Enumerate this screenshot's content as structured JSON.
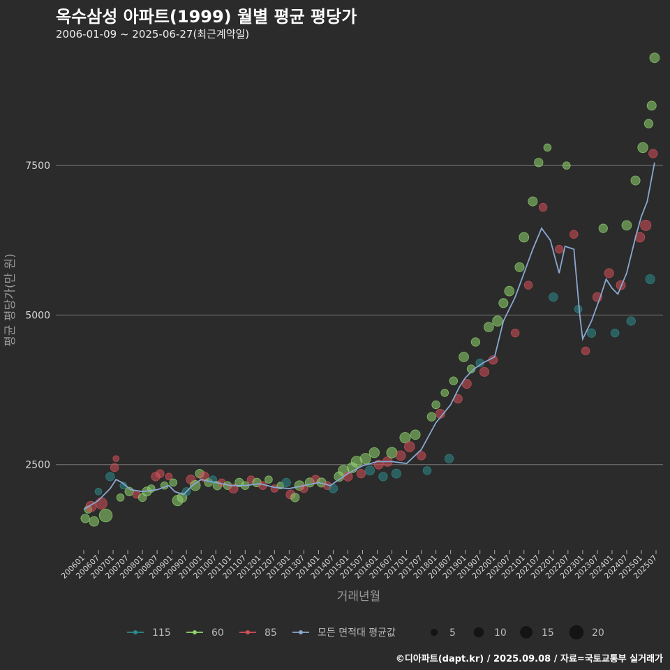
{
  "chart_data": {
    "type": "scatter",
    "title": "옥수삼성 아파트(1999) 월별 평균 평당가",
    "subtitle": "2006-01-09 ~ 2025-06-27(최근계약일)",
    "xlabel": "거래년월",
    "ylabel": "평균 평당가(만 원)",
    "ylim": [
      1050,
      9450
    ],
    "yticks": [
      2500,
      5000,
      7500
    ],
    "grid": true,
    "x_tick_labels": [
      "200601",
      "200607",
      "200701",
      "200707",
      "200801",
      "200807",
      "200901",
      "200907",
      "201001",
      "201007",
      "201101",
      "201107",
      "201201",
      "201207",
      "201301",
      "201307",
      "201401",
      "201407",
      "201501",
      "201507",
      "201601",
      "201607",
      "201701",
      "201707",
      "201801",
      "201807",
      "201901",
      "201907",
      "202001",
      "202007",
      "202101",
      "202107",
      "202201",
      "202207",
      "202301",
      "202307",
      "202401",
      "202407",
      "202501",
      "202507"
    ],
    "series": [
      {
        "name": "115",
        "color": "#2e8b8b"
      },
      {
        "name": "60",
        "color": "#8fd46e"
      },
      {
        "name": "85",
        "color": "#d4505a"
      }
    ],
    "avg_series": {
      "name": "모든 면적대 평균값",
      "color": "#8aa8d0",
      "points": [
        [
          2006.0,
          1750
        ],
        [
          2006.5,
          1900
        ],
        [
          2006.9,
          2100
        ],
        [
          2007.1,
          2250
        ],
        [
          2007.3,
          2200
        ],
        [
          2007.6,
          2080
        ],
        [
          2008.0,
          2050
        ],
        [
          2008.5,
          2080
        ],
        [
          2008.9,
          2150
        ],
        [
          2009.1,
          2050
        ],
        [
          2009.4,
          2000
        ],
        [
          2009.7,
          2150
        ],
        [
          2010.0,
          2250
        ],
        [
          2010.5,
          2200
        ],
        [
          2011.0,
          2150
        ],
        [
          2011.5,
          2150
        ],
        [
          2012.0,
          2180
        ],
        [
          2012.5,
          2120
        ],
        [
          2013.0,
          2100
        ],
        [
          2013.5,
          2150
        ],
        [
          2014.0,
          2200
        ],
        [
          2014.4,
          2150
        ],
        [
          2014.7,
          2250
        ],
        [
          2015.0,
          2350
        ],
        [
          2015.5,
          2480
        ],
        [
          2016.0,
          2550
        ],
        [
          2016.5,
          2550
        ],
        [
          2017.0,
          2520
        ],
        [
          2017.5,
          2750
        ],
        [
          2018.0,
          3200
        ],
        [
          2018.5,
          3500
        ],
        [
          2018.8,
          3800
        ],
        [
          2019.0,
          3950
        ],
        [
          2019.3,
          4100
        ],
        [
          2019.6,
          4200
        ],
        [
          2020.0,
          4300
        ],
        [
          2020.3,
          4900
        ],
        [
          2020.7,
          5300
        ],
        [
          2021.0,
          5700
        ],
        [
          2021.3,
          6100
        ],
        [
          2021.6,
          6450
        ],
        [
          2021.9,
          6250
        ],
        [
          2022.2,
          5700
        ],
        [
          2022.4,
          6150
        ],
        [
          2022.7,
          6100
        ],
        [
          2022.9,
          5000
        ],
        [
          2023.0,
          4600
        ],
        [
          2023.3,
          4900
        ],
        [
          2023.6,
          5300
        ],
        [
          2023.8,
          5600
        ],
        [
          2024.0,
          5450
        ],
        [
          2024.2,
          5350
        ],
        [
          2024.5,
          5700
        ],
        [
          2024.8,
          6300
        ],
        [
          2025.0,
          6650
        ],
        [
          2025.2,
          6900
        ],
        [
          2025.45,
          7550
        ]
      ]
    },
    "points": [
      [
        2006.05,
        1600,
        8,
        "60"
      ],
      [
        2006.15,
        1750,
        6,
        "60"
      ],
      [
        2006.25,
        1800,
        12,
        "85"
      ],
      [
        2006.35,
        1550,
        10,
        "60"
      ],
      [
        2006.5,
        2050,
        5,
        "115"
      ],
      [
        2006.6,
        1850,
        14,
        "85"
      ],
      [
        2006.75,
        1650,
        18,
        "60"
      ],
      [
        2006.9,
        2300,
        8,
        "115"
      ],
      [
        2007.05,
        2450,
        7,
        "85"
      ],
      [
        2007.1,
        2600,
        4,
        "85"
      ],
      [
        2007.25,
        1950,
        6,
        "60"
      ],
      [
        2007.35,
        2150,
        5,
        "115"
      ],
      [
        2007.55,
        2050,
        8,
        "60"
      ],
      [
        2007.8,
        2000,
        6,
        "85"
      ],
      [
        2008.0,
        1950,
        7,
        "60"
      ],
      [
        2008.15,
        2050,
        9,
        "60"
      ],
      [
        2008.3,
        2100,
        6,
        "60"
      ],
      [
        2008.45,
        2300,
        8,
        "85"
      ],
      [
        2008.6,
        2350,
        7,
        "85"
      ],
      [
        2008.75,
        2150,
        6,
        "60"
      ],
      [
        2008.9,
        2300,
        5,
        "85"
      ],
      [
        2009.05,
        2200,
        6,
        "60"
      ],
      [
        2009.2,
        1900,
        12,
        "60"
      ],
      [
        2009.35,
        1950,
        10,
        "60"
      ],
      [
        2009.5,
        2050,
        7,
        "115"
      ],
      [
        2009.65,
        2250,
        9,
        "85"
      ],
      [
        2009.8,
        2150,
        11,
        "60"
      ],
      [
        2009.95,
        2350,
        8,
        "60"
      ],
      [
        2010.1,
        2300,
        10,
        "85"
      ],
      [
        2010.25,
        2200,
        7,
        "60"
      ],
      [
        2010.4,
        2250,
        6,
        "115"
      ],
      [
        2010.55,
        2150,
        8,
        "60"
      ],
      [
        2010.7,
        2200,
        6,
        "85"
      ],
      [
        2010.9,
        2150,
        7,
        "60"
      ],
      [
        2011.1,
        2100,
        9,
        "85"
      ],
      [
        2011.3,
        2200,
        8,
        "60"
      ],
      [
        2011.5,
        2150,
        7,
        "60"
      ],
      [
        2011.7,
        2250,
        6,
        "85"
      ],
      [
        2011.9,
        2200,
        8,
        "60"
      ],
      [
        2012.1,
        2150,
        7,
        "85"
      ],
      [
        2012.3,
        2250,
        6,
        "60"
      ],
      [
        2012.5,
        2100,
        6,
        "85"
      ],
      [
        2012.7,
        2150,
        5,
        "60"
      ],
      [
        2012.9,
        2200,
        8,
        "115"
      ],
      [
        2013.05,
        2000,
        9,
        "85"
      ],
      [
        2013.2,
        1950,
        8,
        "60"
      ],
      [
        2013.35,
        2150,
        10,
        "60"
      ],
      [
        2013.5,
        2100,
        7,
        "85"
      ],
      [
        2013.7,
        2200,
        9,
        "60"
      ],
      [
        2013.9,
        2250,
        8,
        "85"
      ],
      [
        2014.1,
        2200,
        9,
        "60"
      ],
      [
        2014.3,
        2150,
        7,
        "85"
      ],
      [
        2014.5,
        2100,
        8,
        "115"
      ],
      [
        2014.7,
        2300,
        10,
        "60"
      ],
      [
        2014.85,
        2400,
        12,
        "60"
      ],
      [
        2015.0,
        2300,
        9,
        "85"
      ],
      [
        2015.15,
        2450,
        11,
        "60"
      ],
      [
        2015.3,
        2550,
        13,
        "60"
      ],
      [
        2015.45,
        2350,
        8,
        "85"
      ],
      [
        2015.6,
        2600,
        12,
        "60"
      ],
      [
        2015.75,
        2400,
        9,
        "115"
      ],
      [
        2015.9,
        2700,
        11,
        "60"
      ],
      [
        2016.05,
        2500,
        9,
        "85"
      ],
      [
        2016.2,
        2300,
        8,
        "115"
      ],
      [
        2016.35,
        2550,
        10,
        "85"
      ],
      [
        2016.5,
        2700,
        12,
        "60"
      ],
      [
        2016.65,
        2350,
        9,
        "115"
      ],
      [
        2016.8,
        2650,
        10,
        "85"
      ],
      [
        2016.95,
        2950,
        12,
        "60"
      ],
      [
        2017.1,
        2800,
        11,
        "85"
      ],
      [
        2017.3,
        3000,
        10,
        "60"
      ],
      [
        2017.5,
        2650,
        8,
        "85"
      ],
      [
        2017.7,
        2400,
        7,
        "115"
      ],
      [
        2017.85,
        3300,
        8,
        "60"
      ],
      [
        2018.0,
        3500,
        7,
        "60"
      ],
      [
        2018.15,
        3350,
        9,
        "85"
      ],
      [
        2018.3,
        3700,
        6,
        "60"
      ],
      [
        2018.45,
        2600,
        8,
        "115"
      ],
      [
        2018.6,
        3900,
        7,
        "60"
      ],
      [
        2018.75,
        3600,
        8,
        "85"
      ],
      [
        2018.95,
        4300,
        10,
        "60"
      ],
      [
        2019.05,
        3850,
        9,
        "85"
      ],
      [
        2019.2,
        4100,
        7,
        "60"
      ],
      [
        2019.35,
        4550,
        8,
        "60"
      ],
      [
        2019.5,
        4200,
        7,
        "115"
      ],
      [
        2019.65,
        4050,
        9,
        "85"
      ],
      [
        2019.8,
        4800,
        10,
        "60"
      ],
      [
        2019.95,
        4250,
        8,
        "85"
      ],
      [
        2020.1,
        4900,
        11,
        "60"
      ],
      [
        2020.3,
        5200,
        9,
        "60"
      ],
      [
        2020.5,
        5400,
        10,
        "60"
      ],
      [
        2020.7,
        4700,
        7,
        "85"
      ],
      [
        2020.85,
        5800,
        9,
        "60"
      ],
      [
        2021.0,
        6300,
        10,
        "60"
      ],
      [
        2021.15,
        5500,
        7,
        "85"
      ],
      [
        2021.3,
        6900,
        9,
        "60"
      ],
      [
        2021.5,
        7550,
        8,
        "60"
      ],
      [
        2021.65,
        6800,
        7,
        "85"
      ],
      [
        2021.8,
        7800,
        6,
        "60"
      ],
      [
        2022.0,
        5300,
        8,
        "115"
      ],
      [
        2022.2,
        6100,
        7,
        "85"
      ],
      [
        2022.45,
        7500,
        6,
        "60"
      ],
      [
        2022.7,
        6350,
        7,
        "85"
      ],
      [
        2022.85,
        5100,
        6,
        "115"
      ],
      [
        2023.1,
        4400,
        7,
        "85"
      ],
      [
        2023.3,
        4700,
        8,
        "115"
      ],
      [
        2023.5,
        5300,
        9,
        "85"
      ],
      [
        2023.7,
        6450,
        8,
        "60"
      ],
      [
        2023.9,
        5700,
        9,
        "85"
      ],
      [
        2024.1,
        4700,
        7,
        "115"
      ],
      [
        2024.3,
        5500,
        9,
        "85"
      ],
      [
        2024.5,
        6500,
        10,
        "60"
      ],
      [
        2024.65,
        4900,
        8,
        "115"
      ],
      [
        2024.8,
        7250,
        9,
        "60"
      ],
      [
        2024.95,
        6300,
        10,
        "85"
      ],
      [
        2025.05,
        7800,
        11,
        "60"
      ],
      [
        2025.15,
        6500,
        12,
        "85"
      ],
      [
        2025.25,
        8200,
        8,
        "60"
      ],
      [
        2025.3,
        5600,
        9,
        "115"
      ],
      [
        2025.35,
        8500,
        9,
        "60"
      ],
      [
        2025.4,
        7700,
        8,
        "85"
      ],
      [
        2025.45,
        9300,
        10,
        "60"
      ]
    ]
  },
  "legend": {
    "series": [
      {
        "label": "115",
        "color": "#2e8b8b"
      },
      {
        "label": "60",
        "color": "#8fd46e"
      },
      {
        "label": "85",
        "color": "#d4505a"
      },
      {
        "label": "모든 면적대 평균값",
        "color": "#8aa8d0"
      }
    ],
    "sizes": [
      {
        "label": "5",
        "value": 5
      },
      {
        "label": "10",
        "value": 10
      },
      {
        "label": "15",
        "value": 15
      },
      {
        "label": "20",
        "value": 20
      }
    ]
  },
  "caption": "©디아파트(dapt.kr) / 2025.09.08 / 자료=국토교통부 실거래가"
}
